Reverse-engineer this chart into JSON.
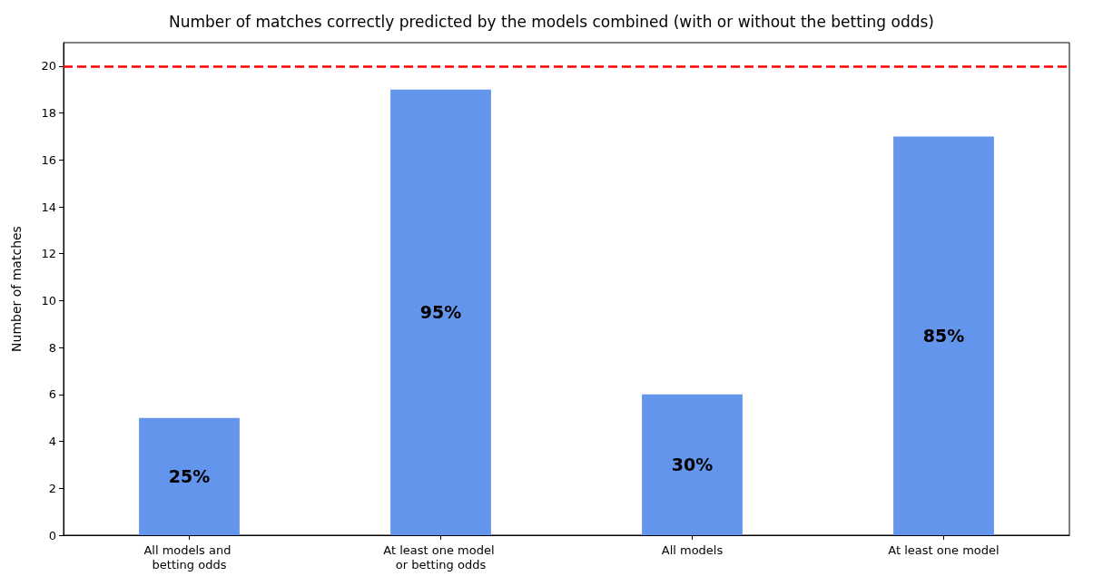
{
  "chart_data": {
    "type": "bar",
    "title": "Number of matches correctly predicted by the models combined (with or without the betting odds)",
    "ylabel": "Number of matches",
    "categories": [
      "All models and betting odds",
      "At least one model or betting odds",
      "All models",
      "At least one model"
    ],
    "values": [
      5,
      19,
      6,
      17
    ],
    "color": "#6495ed",
    "annotations": [
      "25%",
      "95%",
      "30%",
      "85%"
    ],
    "ylim": [
      0,
      21
    ],
    "yticks": [
      0,
      2,
      4,
      6,
      8,
      10,
      12,
      14,
      16,
      18,
      20
    ],
    "grid": false,
    "ref_lines": [
      {
        "axis": "y",
        "value": 20,
        "color": "#ff0000",
        "line_style": "dashed"
      }
    ]
  }
}
